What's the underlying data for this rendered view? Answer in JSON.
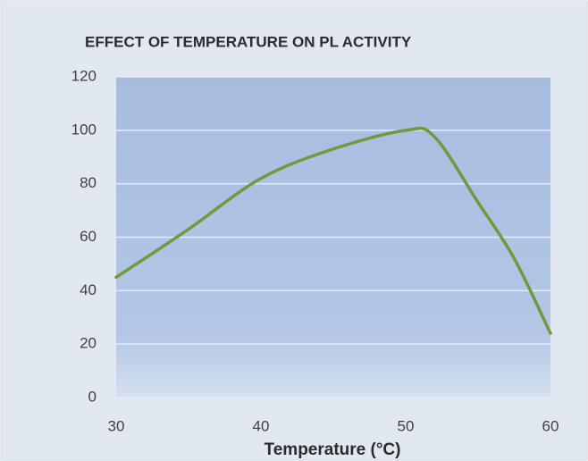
{
  "chart_data": {
    "type": "line",
    "title": "EFFECT OF TEMPERATURE ON PL ACTIVITY",
    "x_label": "Temperature (°C)",
    "x": [
      30,
      35,
      40,
      45,
      50,
      52,
      55,
      57.5,
      60
    ],
    "series": [
      {
        "name": "PL activity",
        "color": "#71993d",
        "values": [
          45,
          63,
          82,
          93,
          100,
          97.5,
          73,
          52,
          24
        ]
      }
    ],
    "xlim": [
      30,
      60
    ],
    "xticks": [
      30,
      40,
      50,
      60
    ],
    "ylim": [
      0,
      120
    ],
    "yticks": [
      0,
      20,
      40,
      60,
      80,
      100,
      120
    ],
    "grid": true
  }
}
